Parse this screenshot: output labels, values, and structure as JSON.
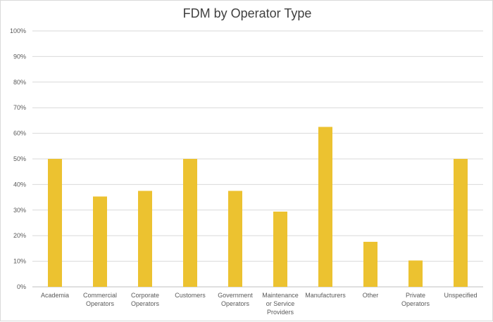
{
  "chart_data": {
    "type": "bar",
    "title": "FDM by Operator Type",
    "xlabel": "",
    "ylabel": "",
    "categories": [
      [
        "Academia"
      ],
      [
        "Commercial",
        "Operators"
      ],
      [
        "Corporate",
        "Operators"
      ],
      [
        "Customers"
      ],
      [
        "Government",
        "Operators"
      ],
      [
        "Maintenance",
        "or Service",
        "Providers"
      ],
      [
        "Manufacturers"
      ],
      [
        "Other"
      ],
      [
        "Private",
        "Operators"
      ],
      [
        "Unspecified"
      ]
    ],
    "values": [
      50,
      35.3,
      37.5,
      50,
      37.5,
      29.4,
      62.5,
      17.6,
      10.3,
      50
    ],
    "ylim": [
      0,
      100
    ],
    "yticks": [
      0,
      10,
      20,
      30,
      40,
      50,
      60,
      70,
      80,
      90,
      100
    ],
    "ytick_labels": [
      "0%",
      "10%",
      "20%",
      "30%",
      "40%",
      "50%",
      "60%",
      "70%",
      "80%",
      "90%",
      "100%"
    ],
    "grid": true,
    "legend": "none",
    "bar_color": "#ECC230"
  }
}
